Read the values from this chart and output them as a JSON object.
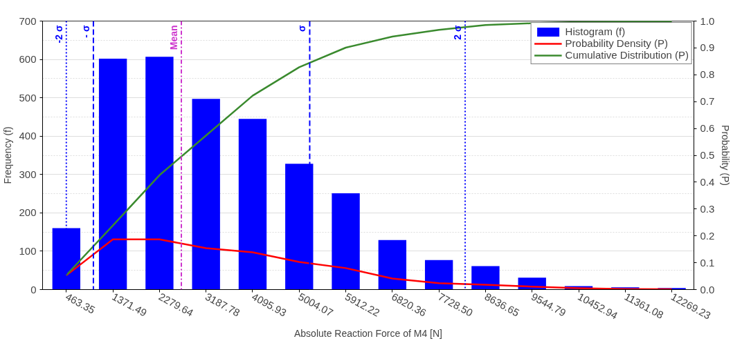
{
  "chart_data": {
    "type": "bar",
    "xlabel": "Absolute Reaction Force of M4 [N]",
    "ylabel": "Frequency (f)",
    "y2label": "Probability (P)",
    "x": [
      463.35,
      1371.49,
      2279.64,
      3187.78,
      4095.93,
      5004.07,
      5912.22,
      6820.36,
      7728.5,
      8636.65,
      9544.79,
      10452.94,
      11361.08,
      12269.23
    ],
    "series": [
      {
        "name": "Histogram (f)",
        "color": "#0000ff",
        "values": [
          160,
          602,
          607,
          497,
          445,
          328,
          251,
          129,
          77,
          61,
          31,
          9,
          6,
          4
        ]
      },
      {
        "name": "Probability Density (P)",
        "type": "line",
        "axis": "y2",
        "color": "#ff0000",
        "values": [
          0.053,
          0.187,
          0.187,
          0.154,
          0.139,
          0.103,
          0.08,
          0.041,
          0.024,
          0.018,
          0.011,
          0.005,
          0.002,
          0.001
        ]
      },
      {
        "name": "Cumulative Distribution (P)",
        "type": "line",
        "axis": "y2",
        "color": "#3a8a2e",
        "values": [
          0.054,
          0.239,
          0.426,
          0.574,
          0.722,
          0.828,
          0.901,
          0.942,
          0.967,
          0.985,
          0.992,
          0.996,
          0.998,
          0.999
        ]
      }
    ],
    "xlim": [
      0,
      12700
    ],
    "xticks": [
      463.35,
      1371.49,
      2279.64,
      3187.78,
      4095.93,
      5004.07,
      5912.22,
      6820.36,
      {
        "value": 7728.5,
        "label": "7728.50"
      },
      8636.65,
      9544.79,
      10452.94,
      11361.08,
      12269.23
    ],
    "ylim": [
      0,
      700
    ],
    "yticks": [
      0,
      100,
      200,
      300,
      400,
      500,
      600,
      700
    ],
    "y2lim": [
      0,
      1
    ],
    "y2ticks": [
      {
        "value": 0,
        "label": "0.0"
      },
      0.1,
      0.2,
      0.3,
      0.4,
      0.5,
      0.6,
      0.7,
      0.8,
      0.9,
      {
        "value": 1,
        "label": "1.0"
      }
    ],
    "ref_lines": [
      {
        "axis": "x",
        "value": 463,
        "label": "-2 σ",
        "color": "#0000ff",
        "line_style": "dotted"
      },
      {
        "axis": "x",
        "value": 991,
        "label": "- σ",
        "color": "#0000ff",
        "line_style": "dashed"
      },
      {
        "axis": "x",
        "value": 2706,
        "label": "Mean",
        "color": "#cc33cc",
        "line_style": "dashdot"
      },
      {
        "axis": "x",
        "value": 5209,
        "label": "σ",
        "color": "#0000ff",
        "line_style": "dashed"
      },
      {
        "axis": "x",
        "value": 8240,
        "label": "2 σ",
        "color": "#0000ff",
        "line_style": "dotted"
      }
    ],
    "grid": "y",
    "legend": "top right",
    "line_style": "solid",
    "marker": "none"
  }
}
